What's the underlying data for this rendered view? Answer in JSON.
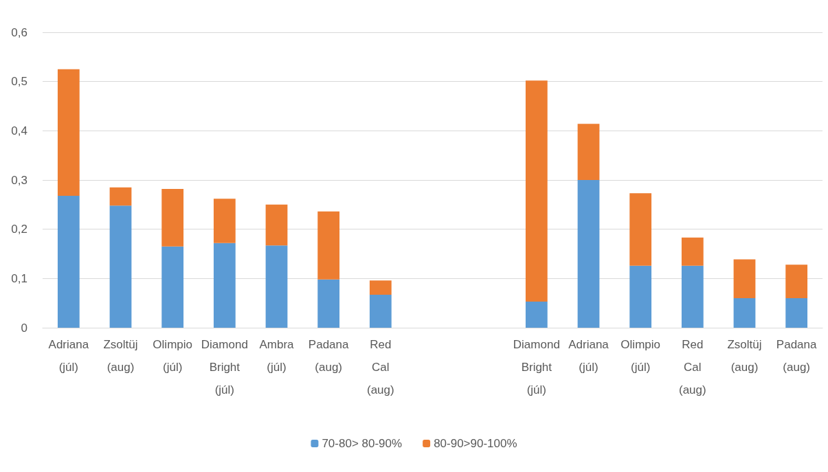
{
  "chart_data": {
    "type": "bar",
    "stacked": true,
    "categories": [
      "Adriana (júl)",
      "Zsoltüj (aug)",
      "Olimpio (júl)",
      "Diamond Bright (júl)",
      "Ambra (júl)",
      "Padana (aug)",
      "Red Cal (aug)",
      null,
      null,
      "Diamond Bright (júl)",
      "Adriana (júl)",
      "Olimpio (júl)",
      "Red Cal (aug)",
      "Zsoltüj (aug)",
      "Padana (aug)"
    ],
    "series": [
      {
        "name": "70-80> 80-90%",
        "color": "#5b9bd5",
        "values": [
          0.268,
          0.248,
          0.165,
          0.172,
          0.167,
          0.098,
          0.067,
          null,
          null,
          0.053,
          0.3,
          0.126,
          0.126,
          0.06,
          0.06
        ]
      },
      {
        "name": "80-90>90-100%",
        "color": "#ed7d31",
        "values": [
          0.257,
          0.037,
          0.117,
          0.09,
          0.083,
          0.138,
          0.029,
          null,
          null,
          0.449,
          0.114,
          0.147,
          0.057,
          0.079,
          0.068
        ]
      }
    ],
    "ylim": [
      0,
      0.6
    ],
    "yticks": [
      0,
      {
        "value": 0.1,
        "label": "0,1"
      },
      {
        "value": 0.2,
        "label": "0,2"
      },
      {
        "value": 0.3,
        "label": "0,3"
      },
      {
        "value": 0.4,
        "label": "0,4"
      },
      {
        "value": 0.5,
        "label": "0,5"
      },
      {
        "value": 0.6,
        "label": "0,6"
      }
    ],
    "grid": "y",
    "legend": "bottom"
  }
}
